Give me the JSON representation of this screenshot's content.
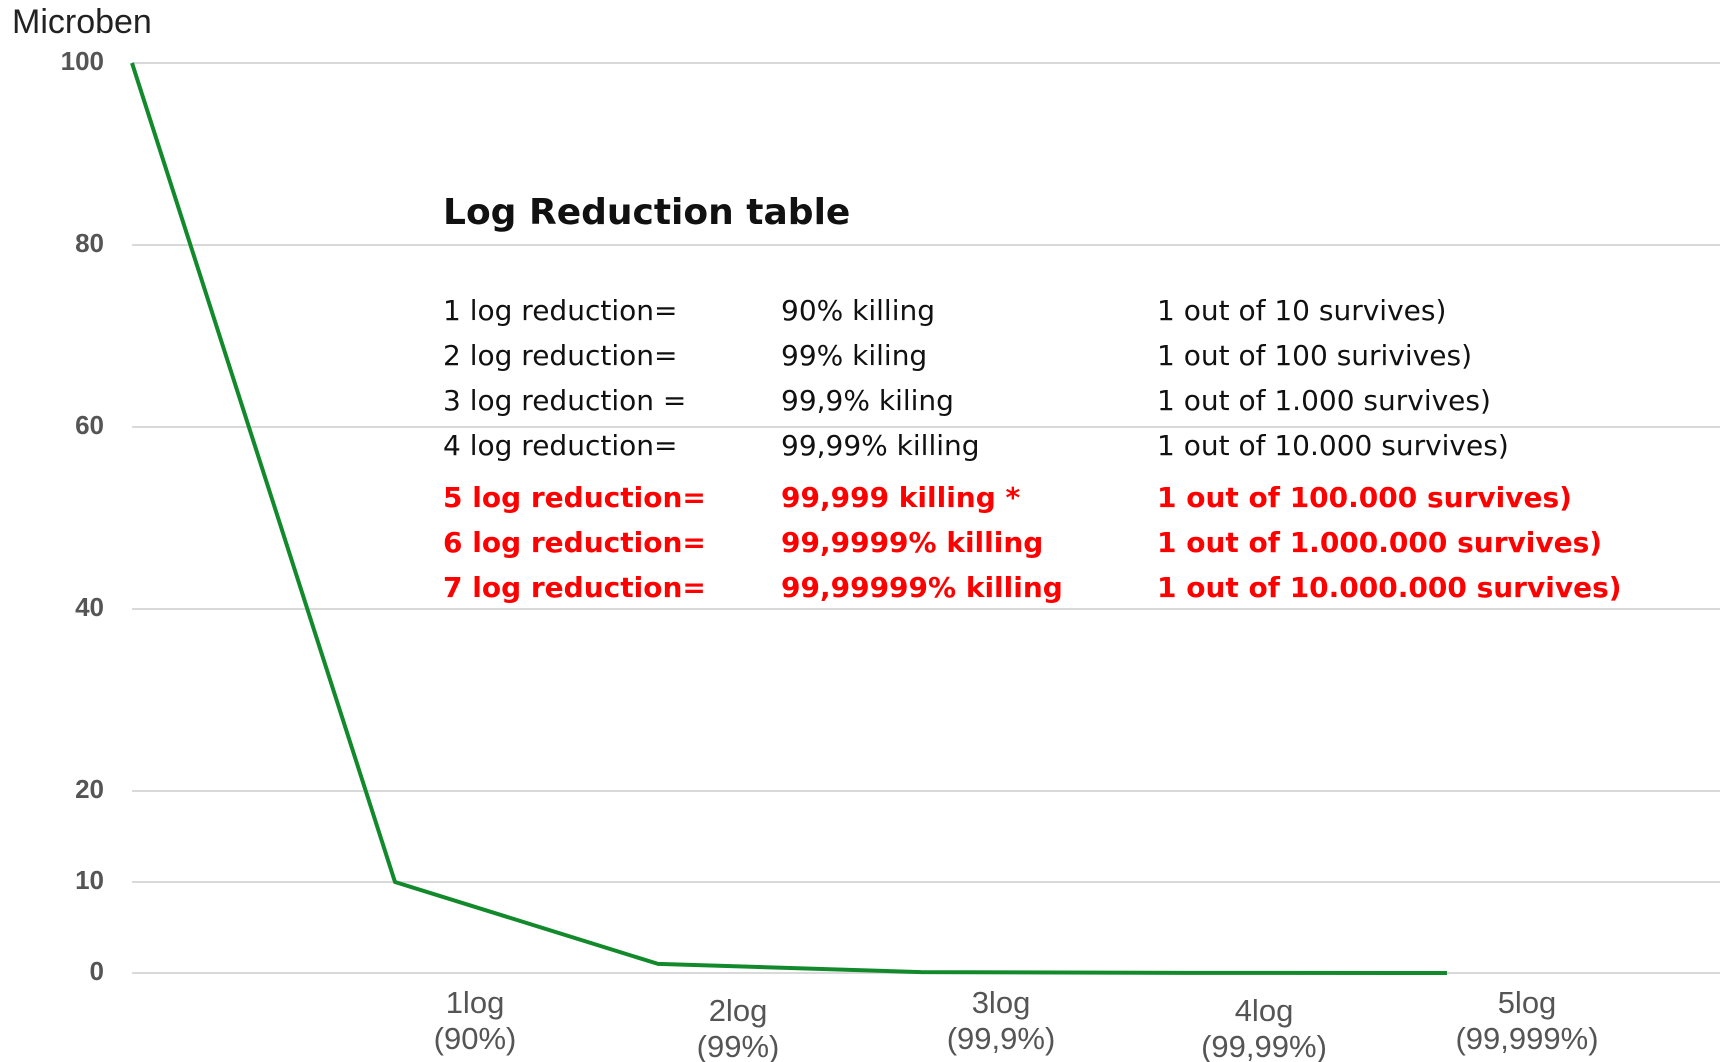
{
  "chart_data": {
    "type": "line",
    "y_label": "Microben",
    "categories": [
      null,
      "1log\n(90%)",
      "2log\n(99%)",
      "3log\n(99,9%)",
      "4log\n(99,99%)",
      "5log\n(99,999%)"
    ],
    "series": [
      {
        "name": "Microben",
        "color": "#128a2c",
        "values": [
          100,
          10,
          1,
          0.1,
          0.01,
          0.001
        ]
      }
    ],
    "ylim": [
      0,
      100
    ],
    "yticks": [
      0,
      10,
      20,
      40,
      60,
      80,
      100
    ],
    "grid": true,
    "annotation": {
      "title": "Log Reduction table",
      "rows": [
        {
          "color": "#111111",
          "cells": [
            "1 log reduction=",
            "90% killing",
            "1 out of 10 survives)"
          ]
        },
        {
          "color": "#111111",
          "cells": [
            "2 log reduction=",
            "99% kiling",
            "1 out of 100 surivives)"
          ]
        },
        {
          "color": "#111111",
          "cells": [
            "3 log reduction =",
            "99,9% kiling",
            "1 out of 1.000 survives)"
          ]
        },
        {
          "color": "#111111",
          "cells": [
            "4 log reduction=",
            "99,99% killing",
            "1 out of 10.000 survives)"
          ]
        },
        {
          "color": "#ff0000",
          "cells": [
            "5 log reduction=",
            "99,999 killing *",
            "1 out of 100.000 survives)"
          ]
        },
        {
          "color": "#ff0000",
          "cells": [
            "6 log reduction=",
            "99,9999% killing",
            "1 out of 1.000.000 survives)"
          ]
        },
        {
          "color": "#ff0000",
          "cells": [
            "7 log reduction=",
            "99,99999% killing",
            "1 out of 10.000.000 survives)"
          ]
        }
      ]
    }
  }
}
